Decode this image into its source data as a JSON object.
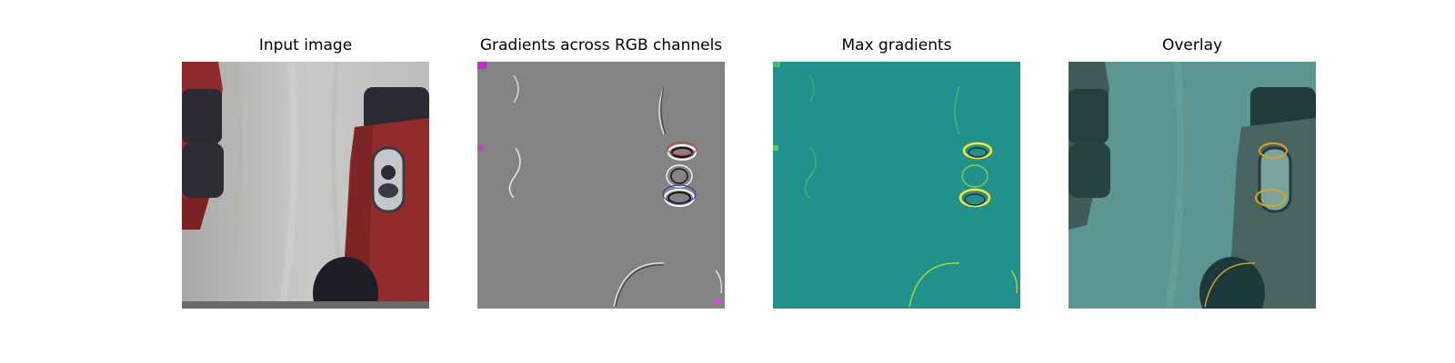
{
  "figure": {
    "panels": [
      {
        "title": "Input image"
      },
      {
        "title": "Gradients across RGB channels"
      },
      {
        "title": "Max gradients"
      },
      {
        "title": "Overlay"
      }
    ]
  },
  "colors": {
    "background_cloth": "#c4c4c2",
    "robot_red": "#8f2a2a",
    "robot_dark": "#2b2a33",
    "gradient_gray": "#808080",
    "viridis_teal": "#21918c",
    "viridis_yellow": "#fde725",
    "overlay_tint": "#4c8c86"
  }
}
